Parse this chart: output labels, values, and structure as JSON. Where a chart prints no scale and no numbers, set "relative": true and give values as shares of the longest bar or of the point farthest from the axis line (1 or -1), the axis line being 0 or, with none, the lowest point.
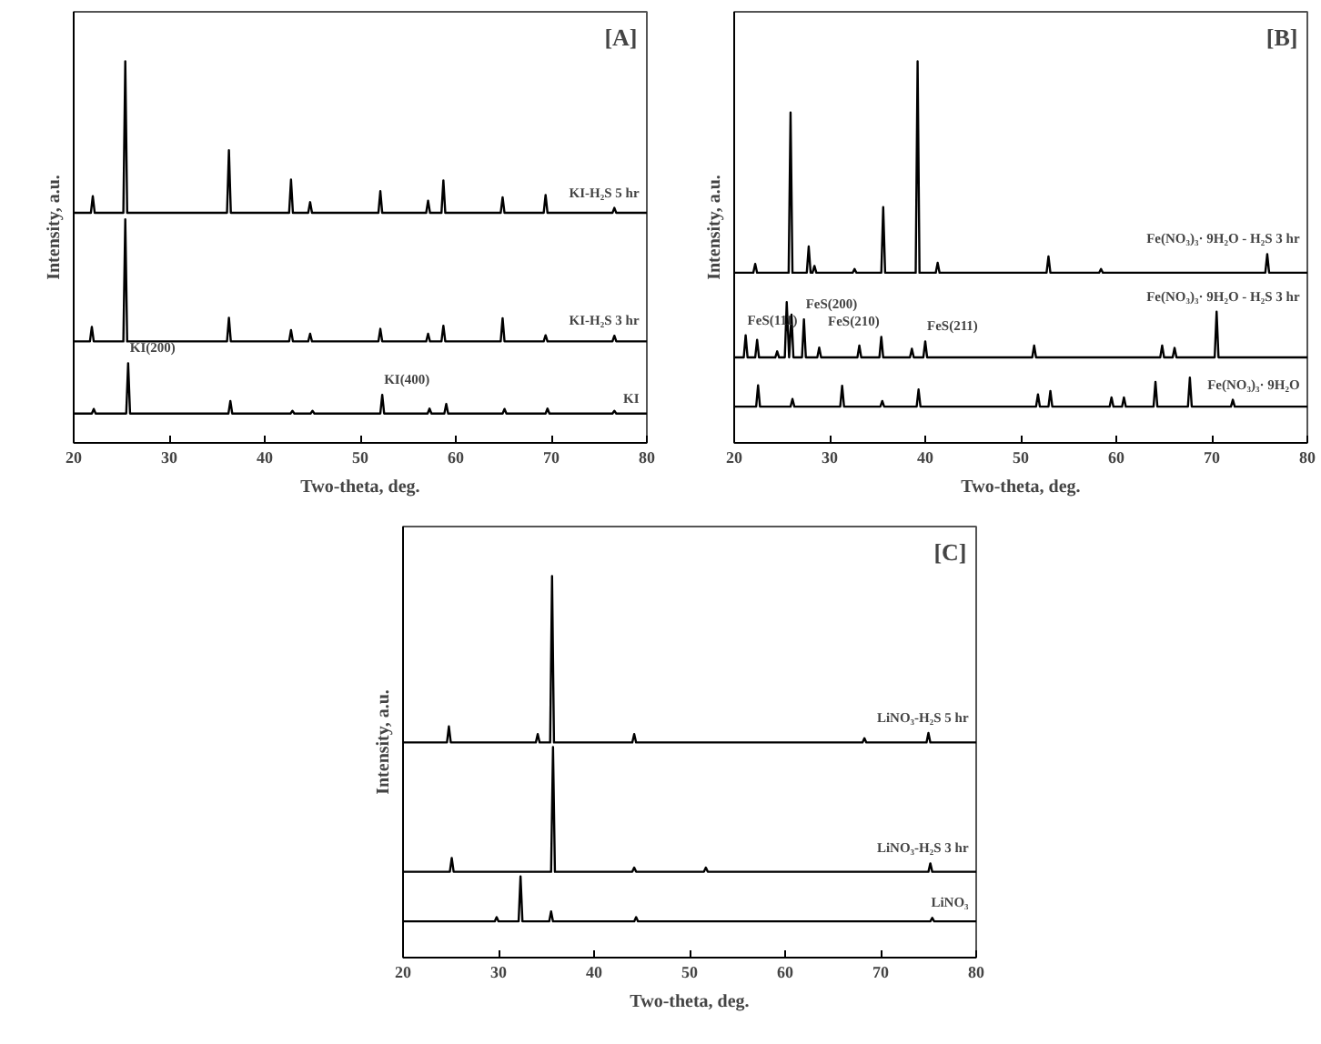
{
  "chart_data": [
    {
      "type": "line",
      "relative": true,
      "xlabel": "Two-theta, deg.",
      "ylabel": "Intensity, a.u.",
      "xlim": [
        20,
        80
      ],
      "xticks": [
        20,
        30,
        40,
        50,
        60,
        70,
        80
      ],
      "grid": false,
      "annotations": [
        "[A]",
        {
          "text": "KI(200)",
          "x": 25.7,
          "y": 0.209
        },
        {
          "text": "KI(400)",
          "x": 52.3,
          "y": 0.126
        }
      ],
      "series": [
        {
          "name": "KI-H₂S 5 hr",
          "color": "#000000",
          "x": [
            20,
            21.8,
            22.0,
            22.2,
            25.2,
            25.4,
            25.6,
            36.05,
            36.25,
            36.45,
            42.55,
            42.75,
            42.95,
            44.55,
            44.75,
            44.95,
            51.9,
            52.1,
            52.3,
            56.9,
            57.1,
            57.3,
            58.5,
            58.7,
            58.9,
            64.7,
            64.9,
            65.1,
            69.2,
            69.4,
            69.6,
            76.4,
            76.6,
            76.8,
            80
          ],
          "values": [
            0.603,
            0.603,
            0.647,
            0.603,
            0.603,
            1.0,
            0.603,
            0.603,
            0.767,
            0.603,
            0.603,
            0.69,
            0.603,
            0.603,
            0.631,
            0.603,
            0.603,
            0.66,
            0.603,
            0.603,
            0.635,
            0.603,
            0.603,
            0.688,
            0.603,
            0.603,
            0.644,
            0.603,
            0.603,
            0.65,
            0.603,
            0.603,
            0.616,
            0.603,
            0.603
          ]
        },
        {
          "name": "KI-H₂S 3 hr",
          "color": "#000000",
          "x": [
            20,
            21.7,
            21.9,
            22.1,
            25.2,
            25.4,
            25.6,
            36.05,
            36.25,
            36.45,
            42.55,
            42.75,
            42.95,
            44.55,
            44.75,
            44.95,
            51.9,
            52.1,
            52.3,
            56.9,
            57.1,
            57.3,
            58.5,
            58.7,
            58.9,
            64.7,
            64.9,
            65.1,
            69.2,
            69.4,
            69.6,
            76.4,
            76.6,
            76.8,
            80
          ],
          "values": [
            0.266,
            0.266,
            0.304,
            0.266,
            0.266,
            0.586,
            0.266,
            0.266,
            0.328,
            0.266,
            0.266,
            0.296,
            0.266,
            0.266,
            0.286,
            0.266,
            0.266,
            0.299,
            0.266,
            0.266,
            0.286,
            0.266,
            0.266,
            0.307,
            0.266,
            0.266,
            0.327,
            0.266,
            0.266,
            0.282,
            0.266,
            0.266,
            0.281,
            0.266,
            0.266
          ]
        },
        {
          "name": "KI",
          "color": "#000000",
          "x": [
            20,
            21.9,
            22.1,
            22.3,
            25.5,
            25.7,
            25.9,
            36.2,
            36.4,
            36.6,
            42.7,
            42.9,
            43.1,
            44.8,
            45.0,
            45.2,
            52.1,
            52.3,
            52.5,
            57.05,
            57.25,
            57.45,
            58.8,
            59.0,
            59.2,
            64.9,
            65.1,
            65.3,
            69.4,
            69.6,
            69.8,
            76.4,
            76.6,
            76.8,
            80
          ],
          "values": [
            0.077,
            0.077,
            0.089,
            0.077,
            0.077,
            0.209,
            0.077,
            0.077,
            0.11,
            0.077,
            0.077,
            0.084,
            0.077,
            0.077,
            0.084,
            0.077,
            0.077,
            0.126,
            0.077,
            0.077,
            0.09,
            0.077,
            0.077,
            0.102,
            0.077,
            0.077,
            0.089,
            0.077,
            0.077,
            0.09,
            0.077,
            0.077,
            0.084,
            0.077,
            0.077
          ]
        }
      ]
    },
    {
      "type": "line",
      "relative": true,
      "xlabel": "Two-theta, deg.",
      "ylabel": "Intensity, a.u.",
      "xlim": [
        20,
        80
      ],
      "xticks": [
        20,
        30,
        40,
        50,
        60,
        70,
        80
      ],
      "grid": false,
      "annotations": [
        "[B]",
        {
          "text": "FeS(111)",
          "x": 21.2,
          "y": 0.282
        },
        {
          "text": "FeS(200)",
          "x": 27.3,
          "y": 0.324
        },
        {
          "text": "FeS(210)",
          "x": 35.4,
          "y": 0.278
        },
        {
          "text": "FeS(211)",
          "x": 40.0,
          "y": 0.266
        }
      ],
      "series": [
        {
          "name": "Fe(NO₃)₃· 9H₂O - H₂S 3 hr",
          "color": "#000000",
          "x": [
            20,
            22.0,
            22.2,
            22.4,
            25.7,
            25.9,
            26.1,
            27.6,
            27.8,
            28.0,
            28.2,
            28.4,
            28.6,
            32.4,
            32.6,
            32.8,
            35.4,
            35.6,
            35.8,
            39.0,
            39.2,
            39.4,
            41.1,
            41.3,
            41.5,
            52.7,
            52.9,
            53.1,
            58.2,
            58.4,
            58.6,
            75.6,
            75.8,
            76.0,
            80
          ],
          "values": [
            0.446,
            0.446,
            0.469,
            0.446,
            0.446,
            0.866,
            0.446,
            0.446,
            0.515,
            0.446,
            0.446,
            0.464,
            0.446,
            0.446,
            0.456,
            0.446,
            0.446,
            0.618,
            0.446,
            0.446,
            1.0,
            0.446,
            0.446,
            0.472,
            0.446,
            0.446,
            0.489,
            0.446,
            0.446,
            0.456,
            0.446,
            0.446,
            0.495,
            0.446,
            0.446
          ]
        },
        {
          "name": "Fe(NO₃)₃· 9H₂O - H₂S 3 hr",
          "color": "#000000",
          "x": [
            20,
            21.0,
            21.2,
            21.4,
            22.2,
            22.4,
            22.6,
            24.3,
            24.5,
            24.7,
            25.3,
            25.5,
            25.75,
            26.0,
            26.2,
            27.1,
            27.3,
            27.5,
            28.7,
            28.9,
            29.1,
            32.9,
            33.1,
            33.3,
            35.2,
            35.4,
            35.6,
            38.4,
            38.6,
            38.8,
            39.8,
            40.0,
            40.2,
            51.2,
            51.4,
            51.6,
            64.6,
            64.8,
            65.0,
            65.9,
            66.1,
            66.3,
            70.3,
            70.5,
            70.7,
            80
          ],
          "values": [
            0.224,
            0.224,
            0.282,
            0.224,
            0.224,
            0.27,
            0.224,
            0.224,
            0.24,
            0.224,
            0.224,
            0.369,
            0.224,
            0.336,
            0.224,
            0.224,
            0.324,
            0.224,
            0.224,
            0.25,
            0.224,
            0.224,
            0.255,
            0.224,
            0.224,
            0.278,
            0.224,
            0.224,
            0.247,
            0.224,
            0.224,
            0.266,
            0.224,
            0.224,
            0.255,
            0.224,
            0.224,
            0.255,
            0.224,
            0.224,
            0.249,
            0.224,
            0.224,
            0.344,
            0.224,
            0.224
          ]
        },
        {
          "name": "Fe(NO₃)₃· 9H₂O",
          "color": "#000000",
          "x": [
            20,
            22.3,
            22.5,
            22.7,
            25.9,
            26.1,
            26.3,
            31.1,
            31.3,
            31.5,
            35.3,
            35.5,
            35.7,
            39.1,
            39.3,
            39.5,
            51.6,
            51.8,
            52.0,
            52.9,
            53.1,
            53.3,
            59.3,
            59.5,
            59.7,
            60.6,
            60.8,
            61.0,
            63.9,
            64.1,
            64.3,
            67.5,
            67.7,
            67.9,
            72.0,
            72.2,
            72.4,
            80
          ],
          "values": [
            0.095,
            0.095,
            0.151,
            0.095,
            0.095,
            0.115,
            0.095,
            0.095,
            0.15,
            0.095,
            0.095,
            0.11,
            0.095,
            0.095,
            0.14,
            0.095,
            0.095,
            0.127,
            0.095,
            0.095,
            0.136,
            0.095,
            0.095,
            0.119,
            0.095,
            0.095,
            0.119,
            0.095,
            0.095,
            0.16,
            0.095,
            0.095,
            0.171,
            0.095,
            0.095,
            0.113,
            0.095,
            0.095
          ]
        }
      ]
    },
    {
      "type": "line",
      "relative": true,
      "xlabel": "Two-theta, deg.",
      "ylabel": "Intensity, a.u.",
      "xlim": [
        20,
        80
      ],
      "xticks": [
        20,
        30,
        40,
        50,
        60,
        70,
        80
      ],
      "grid": false,
      "annotations": [
        "[C]"
      ],
      "series": [
        {
          "name": "LiNO₃-H₂S 5 hr",
          "color": "#000000",
          "x": [
            20,
            24.6,
            24.8,
            25.0,
            33.9,
            34.1,
            34.3,
            35.4,
            35.6,
            35.8,
            44.0,
            44.2,
            44.4,
            68.1,
            68.3,
            68.5,
            74.8,
            75.0,
            75.2,
            80
          ],
          "values": [
            0.564,
            0.564,
            0.606,
            0.564,
            0.564,
            0.586,
            0.564,
            0.564,
            1.0,
            0.564,
            0.564,
            0.586,
            0.564,
            0.564,
            0.575,
            0.564,
            0.564,
            0.589,
            0.564,
            0.564
          ]
        },
        {
          "name": "LiNO₃-H₂S 3 hr",
          "color": "#000000",
          "x": [
            20,
            24.9,
            25.1,
            25.3,
            35.5,
            35.7,
            35.9,
            44.0,
            44.2,
            44.4,
            51.5,
            51.7,
            51.9,
            75.0,
            75.2,
            75.4,
            80
          ],
          "values": [
            0.225,
            0.225,
            0.261,
            0.225,
            0.225,
            0.552,
            0.225,
            0.225,
            0.236,
            0.225,
            0.225,
            0.236,
            0.225,
            0.225,
            0.247,
            0.225,
            0.225
          ]
        },
        {
          "name": "LiNO₃",
          "color": "#000000",
          "x": [
            20,
            29.6,
            29.8,
            30.0,
            32.1,
            32.3,
            32.5,
            35.3,
            35.5,
            35.7,
            44.2,
            44.4,
            44.6,
            75.2,
            75.4,
            75.6,
            80
          ],
          "values": [
            0.095,
            0.095,
            0.106,
            0.095,
            0.095,
            0.213,
            0.095,
            0.095,
            0.121,
            0.095,
            0.095,
            0.106,
            0.095,
            0.095,
            0.104,
            0.095,
            0.095
          ]
        }
      ]
    }
  ]
}
